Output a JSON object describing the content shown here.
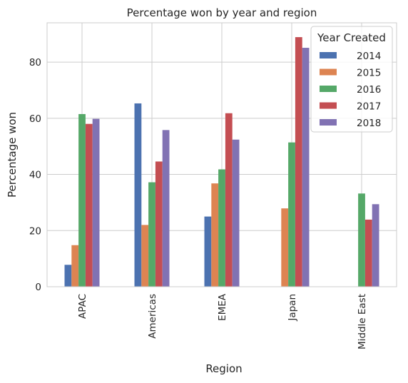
{
  "chart_data": {
    "type": "bar",
    "title": "Percentage won by year and region",
    "xlabel": "Region",
    "ylabel": "Percentage won",
    "categories": [
      "APAC",
      "Americas",
      "EMEA",
      "Japan",
      "Middle East"
    ],
    "ylim": [
      0,
      94
    ],
    "yticks": [
      0,
      20,
      40,
      60,
      80
    ],
    "grid": true,
    "legend": {
      "title": "Year Created",
      "placement": "top-right"
    },
    "series": [
      {
        "name": "2014",
        "color": "#4c72b0",
        "values": [
          7.8,
          65.3,
          25.0,
          0,
          0
        ]
      },
      {
        "name": "2015",
        "color": "#dd8452",
        "values": [
          14.8,
          22.0,
          36.8,
          27.9,
          0
        ]
      },
      {
        "name": "2016",
        "color": "#55a868",
        "values": [
          61.5,
          37.2,
          41.8,
          51.4,
          33.2
        ]
      },
      {
        "name": "2017",
        "color": "#c44e52",
        "values": [
          58.0,
          44.6,
          61.8,
          88.9,
          23.9
        ]
      },
      {
        "name": "2018",
        "color": "#8172b3",
        "values": [
          59.8,
          55.8,
          52.4,
          85.1,
          29.4
        ]
      }
    ]
  }
}
